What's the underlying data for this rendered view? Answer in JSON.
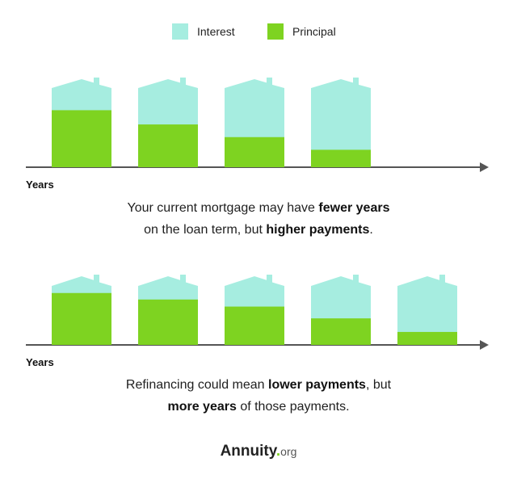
{
  "legend": [
    {
      "label": "Interest",
      "color": "#a6ede0"
    },
    {
      "label": "Principal",
      "color": "#7ed321"
    }
  ],
  "colors": {
    "interest": "#a6ede0",
    "principal": "#7ed321",
    "axis": "#555555",
    "logo_dot": "#7ed321"
  },
  "chart_data": [
    {
      "type": "bar",
      "stacking": "stacked",
      "categories": [
        "",
        "",
        "",
        ""
      ],
      "series": [
        {
          "name": "Principal",
          "values": [
            72,
            54,
            38,
            22
          ]
        },
        {
          "name": "Interest",
          "values": [
            28,
            46,
            62,
            78
          ]
        }
      ],
      "xlabel": "Years",
      "ylabel": "",
      "ylim": [
        0,
        100
      ],
      "bar_shape": "house"
    },
    {
      "type": "bar",
      "stacking": "stacked",
      "categories": [
        "",
        "",
        "",
        "",
        ""
      ],
      "series": [
        {
          "name": "Principal",
          "values": [
            88,
            77,
            65,
            45,
            22
          ]
        },
        {
          "name": "Interest",
          "values": [
            12,
            23,
            35,
            55,
            78
          ]
        }
      ],
      "xlabel": "Years",
      "ylabel": "",
      "ylim": [
        0,
        100
      ],
      "bar_shape": "house"
    }
  ],
  "captions": {
    "current": {
      "line1_a": "Your current mortgage may have ",
      "line1_b": "fewer years",
      "line2_a": "on the loan term, but ",
      "line2_b": "higher payments",
      "line2_c": "."
    },
    "refi": {
      "line1_a": "Refinancing could mean ",
      "line1_b": "lower payments",
      "line1_c": ", but",
      "line2_a": "more years",
      "line2_b": " of those payments."
    }
  },
  "logo": {
    "brand": "Annuity",
    "dot": ".",
    "tld": "org"
  }
}
